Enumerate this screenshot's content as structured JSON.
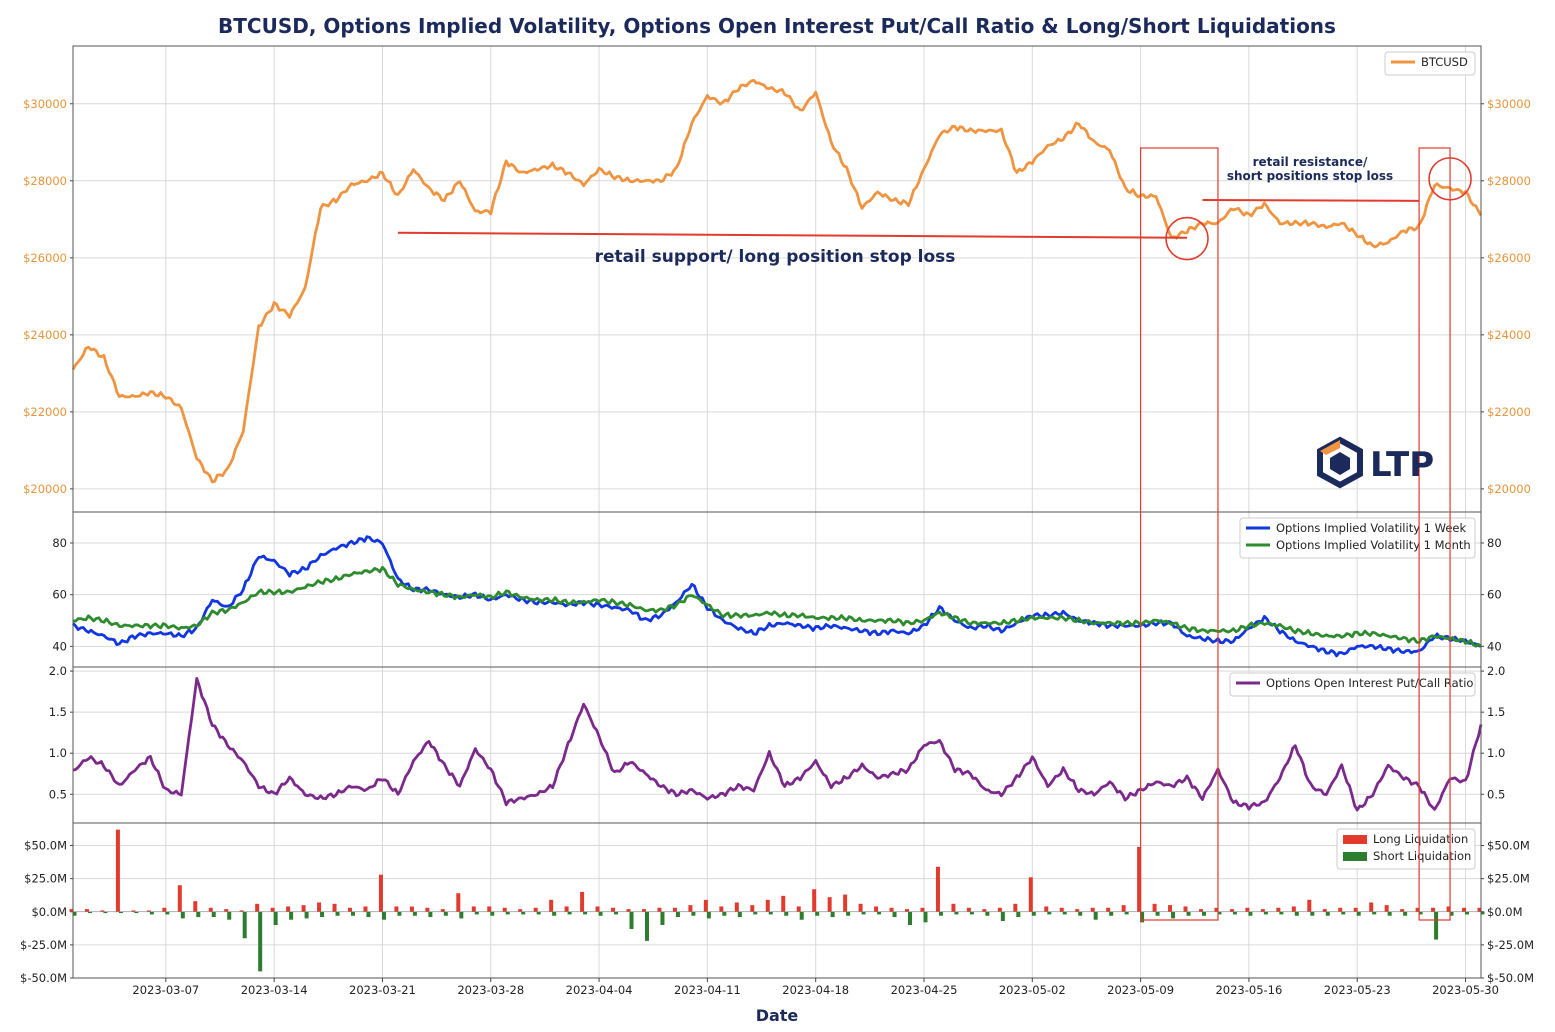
{
  "chart_data": {
    "title": "BTCUSD, Options Implied Volatility, Options Open Interest Put/Call Ratio & Long/Short Liquidations",
    "xlabel": "Date",
    "x_range": [
      "2023-03-01",
      "2023-05-31"
    ],
    "x_ticks": [
      "2023-03-07",
      "2023-03-14",
      "2023-03-21",
      "2023-03-28",
      "2023-04-04",
      "2023-04-11",
      "2023-04-18",
      "2023-04-25",
      "2023-05-02",
      "2023-05-09",
      "2023-05-16",
      "2023-05-23",
      "2023-05-30"
    ],
    "grid": true,
    "panels": [
      {
        "id": "price",
        "type": "line",
        "ylim": [
          19400,
          31500
        ],
        "yticks": [
          20000,
          22000,
          24000,
          26000,
          28000,
          30000
        ],
        "ytick_labels": [
          "$20000",
          "$22000",
          "$24000",
          "$26000",
          "$28000",
          "$30000"
        ],
        "legend_position": "top-right",
        "series": [
          {
            "name": "BTCUSD",
            "color": "#ef9440",
            "x": [
              "2023-03-01",
              "2023-03-02",
              "2023-03-03",
              "2023-03-04",
              "2023-03-05",
              "2023-03-06",
              "2023-03-07",
              "2023-03-08",
              "2023-03-09",
              "2023-03-10",
              "2023-03-11",
              "2023-03-12",
              "2023-03-13",
              "2023-03-14",
              "2023-03-15",
              "2023-03-16",
              "2023-03-17",
              "2023-03-18",
              "2023-03-19",
              "2023-03-20",
              "2023-03-21",
              "2023-03-22",
              "2023-03-23",
              "2023-03-24",
              "2023-03-25",
              "2023-03-26",
              "2023-03-27",
              "2023-03-28",
              "2023-03-29",
              "2023-03-30",
              "2023-03-31",
              "2023-04-01",
              "2023-04-02",
              "2023-04-03",
              "2023-04-04",
              "2023-04-05",
              "2023-04-06",
              "2023-04-07",
              "2023-04-08",
              "2023-04-09",
              "2023-04-10",
              "2023-04-11",
              "2023-04-12",
              "2023-04-13",
              "2023-04-14",
              "2023-04-15",
              "2023-04-16",
              "2023-04-17",
              "2023-04-18",
              "2023-04-19",
              "2023-04-20",
              "2023-04-21",
              "2023-04-22",
              "2023-04-23",
              "2023-04-24",
              "2023-04-25",
              "2023-04-26",
              "2023-04-27",
              "2023-04-28",
              "2023-04-29",
              "2023-04-30",
              "2023-05-01",
              "2023-05-02",
              "2023-05-03",
              "2023-05-04",
              "2023-05-05",
              "2023-05-06",
              "2023-05-07",
              "2023-05-08",
              "2023-05-09",
              "2023-05-10",
              "2023-05-11",
              "2023-05-12",
              "2023-05-13",
              "2023-05-14",
              "2023-05-15",
              "2023-05-16",
              "2023-05-17",
              "2023-05-18",
              "2023-05-19",
              "2023-05-20",
              "2023-05-21",
              "2023-05-22",
              "2023-05-23",
              "2023-05-24",
              "2023-05-25",
              "2023-05-26",
              "2023-05-27",
              "2023-05-28",
              "2023-05-29",
              "2023-05-30",
              "2023-05-31"
            ],
            "values": [
              23100,
              23700,
              23400,
              22400,
              22400,
              22500,
              22400,
              22100,
              20800,
              20200,
              20500,
              21500,
              24200,
              24800,
              24500,
              25200,
              27300,
              27500,
              27900,
              28000,
              28200,
              27600,
              28300,
              27800,
              27500,
              28000,
              27200,
              27200,
              28500,
              28200,
              28300,
              28400,
              28200,
              27900,
              28300,
              28100,
              28000,
              28000,
              28000,
              28300,
              29500,
              30200,
              30000,
              30400,
              30600,
              30400,
              30300,
              29800,
              30300,
              29000,
              28300,
              27300,
              27700,
              27500,
              27400,
              28300,
              29200,
              29400,
              29300,
              29300,
              29300,
              28200,
              28500,
              28900,
              29100,
              29500,
              29000,
              28800,
              27800,
              27600,
              27600,
              26500,
              26700,
              26900,
              26900,
              27300,
              27100,
              27400,
              26900,
              26900,
              26900,
              26800,
              26900,
              26600,
              26300,
              26400,
              26700,
              26800,
              27900,
              27800,
              27700,
              27100
            ]
          }
        ],
        "annotations": [
          {
            "text": "retail support/ long position stop loss",
            "color": "#1b2a5a"
          },
          {
            "text": "retail resistance/",
            "color": "#1b2a5a"
          },
          {
            "text": "short positions stop loss",
            "color": "#1b2a5a"
          }
        ],
        "reference_lines": [
          {
            "color": "#e23b2e",
            "from": [
              "2023-03-22",
              26650
            ],
            "to": [
              "2023-05-12",
              26520
            ]
          },
          {
            "color": "#e23b2e",
            "from": [
              "2023-05-13",
              27500
            ],
            "to": [
              "2023-05-27",
              27480
            ]
          }
        ],
        "highlight_circles": [
          {
            "x": "2023-05-12",
            "y": 26500,
            "color": "#e23b2e"
          },
          {
            "x": "2023-05-29",
            "y": 28050,
            "color": "#e23b2e"
          }
        ]
      },
      {
        "id": "iv",
        "type": "line",
        "ylim": [
          32,
          92
        ],
        "yticks": [
          40,
          60,
          80
        ],
        "ytick_labels": [
          "40",
          "60",
          "80"
        ],
        "legend_position": "top-right",
        "series": [
          {
            "name": "Options Implied Volatility 1 Week",
            "color": "#1236e0",
            "values": [
              48,
              46,
              44,
              41,
              44,
              45,
              45,
              44,
              47,
              58,
              55,
              62,
              75,
              73,
              68,
              70,
              75,
              78,
              80,
              82,
              80,
              66,
              62,
              62,
              60,
              59,
              60,
              58,
              60,
              58,
              57,
              57,
              56,
              57,
              56,
              55,
              54,
              50,
              52,
              57,
              64,
              55,
              50,
              47,
              45,
              48,
              49,
              48,
              47,
              48,
              47,
              46,
              45,
              46,
              45,
              48,
              55,
              50,
              47,
              48,
              46,
              49,
              52,
              52,
              53,
              50,
              49,
              48,
              48,
              48,
              49,
              49,
              44,
              43,
              42,
              42,
              47,
              51,
              46,
              42,
              40,
              38,
              37,
              40,
              40,
              39,
              38,
              38,
              44,
              43,
              42,
              40
            ]
          },
          {
            "name": "Options Implied Volatility 1 Month",
            "color": "#2e8b2e",
            "values": [
              50,
              51,
              50,
              48,
              48,
              48,
              48,
              47,
              48,
              53,
              54,
              57,
              61,
              61,
              61,
              63,
              65,
              66,
              68,
              69,
              70,
              64,
              62,
              61,
              60,
              59,
              60,
              59,
              61,
              59,
              58,
              58,
              57,
              57,
              58,
              57,
              56,
              54,
              54,
              56,
              60,
              56,
              52,
              52,
              52,
              53,
              52,
              52,
              51,
              51,
              51,
              50,
              50,
              50,
              49,
              50,
              53,
              51,
              49,
              49,
              49,
              50,
              51,
              51,
              51,
              50,
              49,
              49,
              49,
              49,
              50,
              49,
              47,
              46,
              46,
              46,
              48,
              49,
              48,
              46,
              45,
              44,
              44,
              45,
              45,
              44,
              43,
              42,
              44,
              43,
              42,
              40
            ]
          }
        ]
      },
      {
        "id": "pcr",
        "type": "line",
        "ylim": [
          0.15,
          2.05
        ],
        "yticks": [
          0.5,
          1.0,
          1.5,
          2.0
        ],
        "ytick_labels": [
          "0.5",
          "1.0",
          "1.5",
          "2.0"
        ],
        "legend_position": "top-right",
        "series": [
          {
            "name": "Options Open Interest Put/Call Ratio",
            "color": "#7b2a8c",
            "values": [
              0.78,
              0.95,
              0.85,
              0.6,
              0.8,
              0.95,
              0.55,
              0.5,
              1.9,
              1.35,
              1.1,
              0.9,
              0.6,
              0.5,
              0.7,
              0.5,
              0.45,
              0.5,
              0.6,
              0.55,
              0.7,
              0.5,
              0.9,
              1.15,
              0.85,
              0.6,
              1.05,
              0.8,
              0.4,
              0.45,
              0.5,
              0.6,
              1.1,
              1.6,
              1.2,
              0.75,
              0.9,
              0.75,
              0.6,
              0.5,
              0.55,
              0.45,
              0.5,
              0.6,
              0.55,
              1.0,
              0.6,
              0.7,
              0.9,
              0.6,
              0.7,
              0.85,
              0.7,
              0.75,
              0.8,
              1.1,
              1.15,
              0.8,
              0.75,
              0.55,
              0.5,
              0.7,
              0.95,
              0.6,
              0.8,
              0.55,
              0.5,
              0.65,
              0.45,
              0.55,
              0.65,
              0.6,
              0.7,
              0.45,
              0.8,
              0.4,
              0.35,
              0.4,
              0.7,
              1.1,
              0.6,
              0.5,
              0.85,
              0.3,
              0.5,
              0.85,
              0.7,
              0.6,
              0.3,
              0.7,
              0.65,
              1.35
            ]
          }
        ]
      },
      {
        "id": "liquidations",
        "type": "bar",
        "ylim": [
          -50000000,
          67000000
        ],
        "yticks": [
          -50000000,
          -25000000,
          0,
          25000000,
          50000000
        ],
        "ytick_labels": [
          "$-50.0M",
          "$-25.0M",
          "$0.0M",
          "$25.0M",
          "$50.0M"
        ],
        "legend_position": "top-right",
        "series": [
          {
            "name": "Long Liquidation",
            "color": "#e23b2e",
            "values": [
              2,
              2,
              1,
              62,
              1,
              1,
              3,
              20,
              8,
              3,
              2,
              1,
              6,
              3,
              4,
              5,
              7,
              6,
              3,
              4,
              28,
              4,
              4,
              3,
              2,
              14,
              4,
              4,
              3,
              2,
              3,
              9,
              4,
              15,
              4,
              3,
              2,
              2,
              3,
              3,
              5,
              9,
              4,
              7,
              5,
              9,
              12,
              4,
              17,
              11,
              13,
              6,
              4,
              3,
              2,
              3,
              34,
              6,
              3,
              2,
              3,
              6,
              26,
              4,
              3,
              2,
              3,
              3,
              5,
              49,
              6,
              5,
              4,
              2,
              3,
              2,
              3,
              2,
              3,
              4,
              9,
              2,
              3,
              3,
              7,
              5,
              2,
              3,
              3,
              4,
              3,
              3
            ]
          },
          {
            "name": "Short Liquidation",
            "color": "#2e7d2e",
            "values": [
              -3,
              -1,
              -1,
              -1,
              -1,
              -2,
              -2,
              -5,
              -4,
              -4,
              -6,
              -20,
              -45,
              -10,
              -6,
              -5,
              -4,
              -3,
              -3,
              -4,
              -6,
              -3,
              -3,
              -4,
              -3,
              -5,
              -2,
              -3,
              -2,
              -2,
              -2,
              -3,
              -2,
              -2,
              -3,
              -2,
              -13,
              -22,
              -10,
              -4,
              -3,
              -5,
              -3,
              -4,
              -2,
              -2,
              -3,
              -6,
              -3,
              -4,
              -3,
              -2,
              -2,
              -4,
              -10,
              -8,
              -3,
              -2,
              -2,
              -3,
              -7,
              -4,
              -3,
              -2,
              -2,
              -3,
              -6,
              -3,
              -2,
              -8,
              -3,
              -5,
              -3,
              -3,
              -2,
              -2,
              -3,
              -2,
              -2,
              -3,
              -3,
              -3,
              -2,
              -3,
              -2,
              -3,
              -3,
              -2,
              -21,
              -3,
              -2,
              -2
            ]
          }
        ]
      }
    ],
    "highlight_windows": [
      {
        "from": "2023-05-09",
        "to": "2023-05-14",
        "color": "#e23b2e"
      },
      {
        "from": "2023-05-27",
        "to": "2023-05-29",
        "color": "#e23b2e"
      }
    ]
  },
  "logo": {
    "text": "LTP",
    "icon": "ltp-hexagon-logo"
  }
}
